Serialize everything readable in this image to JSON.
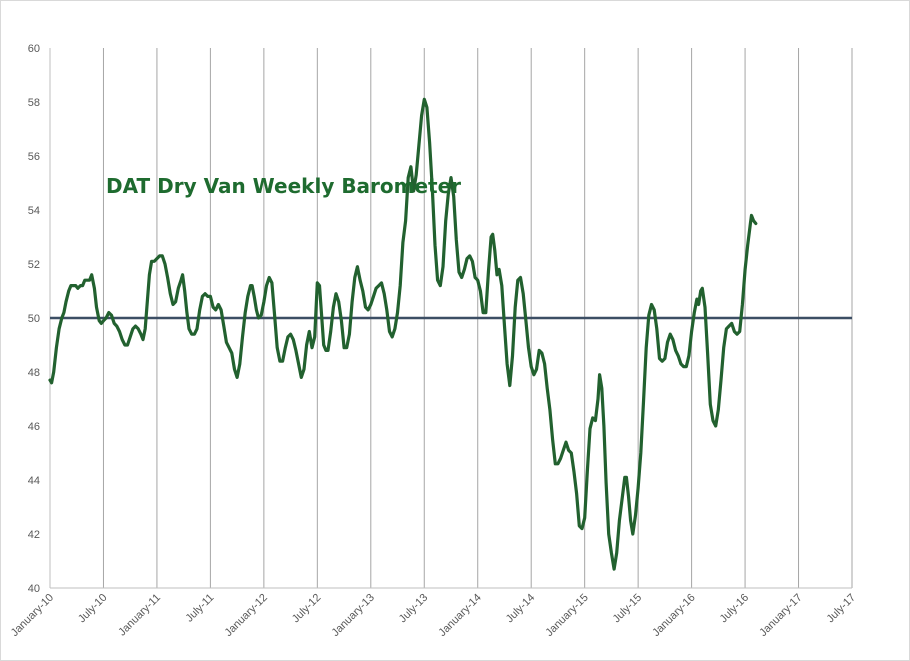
{
  "chart_data": {
    "type": "line",
    "title": "DAT Dry Van Weekly Barometer",
    "xlabel": "",
    "ylabel": "",
    "ylim": [
      40,
      60
    ],
    "y_ticks": [
      "40",
      "42",
      "44",
      "46",
      "48",
      "50",
      "52",
      "54",
      "56",
      "58",
      "60"
    ],
    "x_tick_labels": [
      "January-10",
      "July-10",
      "January-11",
      "July-11",
      "January-12",
      "July-12",
      "January-13",
      "July-13",
      "January-14",
      "July-14",
      "January-15",
      "July-15",
      "January-16",
      "July-16",
      "January-17",
      "July-17"
    ],
    "grid": "vertical",
    "reference_line": {
      "y": 50
    },
    "colors": {
      "series": "#22612f",
      "reference": "#3c4e64",
      "grid": "#a6a6a6"
    },
    "series": [
      {
        "points": [
          [
            0.0,
            47.7
          ],
          [
            0.03,
            47.6
          ],
          [
            0.07,
            48.0
          ],
          [
            0.12,
            48.9
          ],
          [
            0.17,
            49.6
          ],
          [
            0.22,
            50.0
          ],
          [
            0.26,
            50.2
          ],
          [
            0.3,
            50.6
          ],
          [
            0.35,
            51.0
          ],
          [
            0.39,
            51.2
          ],
          [
            0.44,
            51.2
          ],
          [
            0.48,
            51.2
          ],
          [
            0.52,
            51.1
          ],
          [
            0.57,
            51.2
          ],
          [
            0.61,
            51.2
          ],
          [
            0.65,
            51.4
          ],
          [
            0.7,
            51.4
          ],
          [
            0.74,
            51.4
          ],
          [
            0.78,
            51.6
          ],
          [
            0.83,
            51.1
          ],
          [
            0.87,
            50.4
          ],
          [
            0.92,
            49.9
          ],
          [
            0.96,
            49.8
          ],
          [
            1.0,
            49.9
          ],
          [
            1.05,
            50.0
          ],
          [
            1.1,
            50.2
          ],
          [
            1.15,
            50.1
          ],
          [
            1.2,
            49.8
          ],
          [
            1.25,
            49.7
          ],
          [
            1.3,
            49.5
          ],
          [
            1.35,
            49.2
          ],
          [
            1.4,
            49.0
          ],
          [
            1.45,
            49.0
          ],
          [
            1.5,
            49.3
          ],
          [
            1.55,
            49.6
          ],
          [
            1.6,
            49.7
          ],
          [
            1.65,
            49.6
          ],
          [
            1.7,
            49.4
          ],
          [
            1.74,
            49.2
          ],
          [
            1.78,
            49.6
          ],
          [
            1.82,
            50.6
          ],
          [
            1.86,
            51.6
          ],
          [
            1.9,
            52.1
          ],
          [
            1.95,
            52.1
          ],
          [
            2.0,
            52.2
          ],
          [
            2.05,
            52.3
          ],
          [
            2.1,
            52.3
          ],
          [
            2.15,
            52.0
          ],
          [
            2.2,
            51.5
          ],
          [
            2.25,
            50.9
          ],
          [
            2.3,
            50.5
          ],
          [
            2.35,
            50.6
          ],
          [
            2.4,
            51.1
          ],
          [
            2.45,
            51.4
          ],
          [
            2.48,
            51.6
          ],
          [
            2.52,
            51.0
          ],
          [
            2.56,
            50.2
          ],
          [
            2.6,
            49.6
          ],
          [
            2.65,
            49.4
          ],
          [
            2.7,
            49.4
          ],
          [
            2.75,
            49.6
          ],
          [
            2.8,
            50.3
          ],
          [
            2.85,
            50.8
          ],
          [
            2.9,
            50.9
          ],
          [
            2.95,
            50.8
          ],
          [
            3.0,
            50.8
          ],
          [
            3.05,
            50.4
          ],
          [
            3.1,
            50.3
          ],
          [
            3.15,
            50.5
          ],
          [
            3.2,
            50.3
          ],
          [
            3.25,
            49.7
          ],
          [
            3.3,
            49.1
          ],
          [
            3.35,
            48.9
          ],
          [
            3.4,
            48.7
          ],
          [
            3.45,
            48.1
          ],
          [
            3.5,
            47.8
          ],
          [
            3.55,
            48.3
          ],
          [
            3.6,
            49.3
          ],
          [
            3.65,
            50.2
          ],
          [
            3.7,
            50.8
          ],
          [
            3.75,
            51.2
          ],
          [
            3.78,
            51.2
          ],
          [
            3.82,
            50.8
          ],
          [
            3.86,
            50.3
          ],
          [
            3.9,
            50.0
          ],
          [
            3.95,
            50.1
          ],
          [
            4.0,
            50.6
          ],
          [
            4.05,
            51.2
          ],
          [
            4.1,
            51.5
          ],
          [
            4.15,
            51.3
          ],
          [
            4.2,
            50.1
          ],
          [
            4.25,
            48.9
          ],
          [
            4.3,
            48.4
          ],
          [
            4.35,
            48.4
          ],
          [
            4.4,
            48.9
          ],
          [
            4.45,
            49.3
          ],
          [
            4.5,
            49.4
          ],
          [
            4.55,
            49.2
          ],
          [
            4.6,
            48.8
          ],
          [
            4.65,
            48.3
          ],
          [
            4.7,
            47.8
          ],
          [
            4.75,
            48.1
          ],
          [
            4.8,
            49.0
          ],
          [
            4.85,
            49.5
          ],
          [
            4.9,
            48.9
          ],
          [
            4.95,
            49.3
          ],
          [
            5.0,
            51.3
          ],
          [
            5.04,
            51.2
          ],
          [
            5.08,
            50.1
          ],
          [
            5.12,
            49.0
          ],
          [
            5.16,
            48.8
          ],
          [
            5.2,
            48.8
          ],
          [
            5.25,
            49.5
          ],
          [
            5.3,
            50.4
          ],
          [
            5.35,
            50.9
          ],
          [
            5.4,
            50.6
          ],
          [
            5.45,
            49.9
          ],
          [
            5.5,
            48.9
          ],
          [
            5.55,
            48.9
          ],
          [
            5.6,
            49.4
          ],
          [
            5.65,
            50.6
          ],
          [
            5.7,
            51.5
          ],
          [
            5.75,
            51.9
          ],
          [
            5.8,
            51.4
          ],
          [
            5.85,
            51.0
          ],
          [
            5.9,
            50.4
          ],
          [
            5.95,
            50.3
          ],
          [
            6.0,
            50.5
          ],
          [
            6.05,
            50.8
          ],
          [
            6.1,
            51.1
          ],
          [
            6.15,
            51.2
          ],
          [
            6.2,
            51.3
          ],
          [
            6.25,
            50.9
          ],
          [
            6.3,
            50.3
          ],
          [
            6.35,
            49.5
          ],
          [
            6.4,
            49.3
          ],
          [
            6.45,
            49.6
          ],
          [
            6.5,
            50.2
          ],
          [
            6.55,
            51.2
          ],
          [
            6.6,
            52.8
          ],
          [
            6.65,
            53.6
          ],
          [
            6.7,
            55.2
          ],
          [
            6.75,
            55.6
          ],
          [
            6.8,
            54.7
          ],
          [
            6.85,
            55.3
          ],
          [
            6.9,
            56.4
          ],
          [
            6.95,
            57.5
          ],
          [
            7.0,
            58.1
          ],
          [
            7.05,
            57.8
          ],
          [
            7.1,
            56.5
          ],
          [
            7.15,
            54.8
          ],
          [
            7.2,
            52.7
          ],
          [
            7.25,
            51.4
          ],
          [
            7.3,
            51.2
          ],
          [
            7.35,
            51.9
          ],
          [
            7.4,
            53.6
          ],
          [
            7.45,
            54.6
          ],
          [
            7.5,
            55.2
          ],
          [
            7.55,
            54.5
          ],
          [
            7.6,
            52.9
          ],
          [
            7.65,
            51.7
          ],
          [
            7.7,
            51.5
          ],
          [
            7.75,
            51.8
          ],
          [
            7.8,
            52.2
          ],
          [
            7.85,
            52.3
          ],
          [
            7.9,
            52.1
          ],
          [
            7.95,
            51.5
          ],
          [
            8.0,
            51.4
          ],
          [
            8.05,
            51.0
          ],
          [
            8.1,
            50.2
          ],
          [
            8.15,
            50.2
          ],
          [
            8.2,
            51.7
          ],
          [
            8.25,
            53.0
          ],
          [
            8.28,
            53.1
          ],
          [
            8.32,
            52.5
          ],
          [
            8.36,
            51.6
          ],
          [
            8.4,
            51.8
          ],
          [
            8.45,
            51.2
          ],
          [
            8.5,
            49.7
          ],
          [
            8.55,
            48.3
          ],
          [
            8.6,
            47.5
          ],
          [
            8.65,
            48.6
          ],
          [
            8.7,
            50.4
          ],
          [
            8.75,
            51.4
          ],
          [
            8.8,
            51.5
          ],
          [
            8.85,
            50.9
          ],
          [
            8.9,
            49.9
          ],
          [
            8.95,
            48.9
          ],
          [
            9.0,
            48.2
          ],
          [
            9.05,
            47.9
          ],
          [
            9.1,
            48.1
          ],
          [
            9.15,
            48.8
          ],
          [
            9.2,
            48.7
          ],
          [
            9.25,
            48.3
          ],
          [
            9.3,
            47.4
          ],
          [
            9.35,
            46.6
          ],
          [
            9.4,
            45.5
          ],
          [
            9.45,
            44.6
          ],
          [
            9.5,
            44.6
          ],
          [
            9.55,
            44.8
          ],
          [
            9.6,
            45.1
          ],
          [
            9.65,
            45.4
          ],
          [
            9.7,
            45.1
          ],
          [
            9.75,
            45.0
          ],
          [
            9.8,
            44.3
          ],
          [
            9.85,
            43.5
          ],
          [
            9.9,
            42.3
          ],
          [
            9.95,
            42.2
          ],
          [
            10.0,
            42.6
          ],
          [
            10.05,
            44.3
          ],
          [
            10.1,
            45.9
          ],
          [
            10.15,
            46.3
          ],
          [
            10.2,
            46.2
          ],
          [
            10.25,
            47.0
          ],
          [
            10.28,
            47.9
          ],
          [
            10.32,
            47.4
          ],
          [
            10.36,
            46.0
          ],
          [
            10.4,
            43.9
          ],
          [
            10.45,
            42.0
          ],
          [
            10.5,
            41.3
          ],
          [
            10.55,
            40.7
          ],
          [
            10.6,
            41.3
          ],
          [
            10.65,
            42.5
          ],
          [
            10.7,
            43.3
          ],
          [
            10.75,
            44.1
          ],
          [
            10.78,
            44.1
          ],
          [
            10.82,
            43.4
          ],
          [
            10.86,
            42.5
          ],
          [
            10.9,
            42.0
          ],
          [
            10.95,
            42.7
          ],
          [
            11.0,
            43.7
          ],
          [
            11.05,
            45.0
          ],
          [
            11.1,
            46.9
          ],
          [
            11.15,
            48.9
          ],
          [
            11.2,
            50.1
          ],
          [
            11.25,
            50.5
          ],
          [
            11.3,
            50.3
          ],
          [
            11.35,
            49.6
          ],
          [
            11.4,
            48.5
          ],
          [
            11.45,
            48.4
          ],
          [
            11.5,
            48.5
          ],
          [
            11.55,
            49.1
          ],
          [
            11.6,
            49.4
          ],
          [
            11.65,
            49.2
          ],
          [
            11.7,
            48.8
          ],
          [
            11.75,
            48.6
          ],
          [
            11.8,
            48.3
          ],
          [
            11.85,
            48.2
          ],
          [
            11.9,
            48.2
          ],
          [
            11.95,
            48.6
          ],
          [
            12.0,
            49.5
          ],
          [
            12.05,
            50.2
          ],
          [
            12.1,
            50.7
          ],
          [
            12.13,
            50.5
          ],
          [
            12.17,
            51.0
          ],
          [
            12.2,
            51.1
          ],
          [
            12.25,
            50.4
          ],
          [
            12.3,
            48.7
          ],
          [
            12.35,
            46.8
          ],
          [
            12.4,
            46.2
          ],
          [
            12.45,
            46.0
          ],
          [
            12.5,
            46.6
          ],
          [
            12.55,
            47.7
          ],
          [
            12.6,
            48.9
          ],
          [
            12.65,
            49.6
          ],
          [
            12.7,
            49.7
          ],
          [
            12.75,
            49.8
          ],
          [
            12.8,
            49.5
          ],
          [
            12.85,
            49.4
          ],
          [
            12.9,
            49.5
          ],
          [
            12.95,
            50.5
          ],
          [
            13.0,
            51.8
          ],
          [
            13.05,
            52.7
          ],
          [
            13.1,
            53.5
          ],
          [
            13.12,
            53.8
          ],
          [
            13.16,
            53.6
          ],
          [
            13.2,
            53.5
          ]
        ]
      }
    ]
  }
}
